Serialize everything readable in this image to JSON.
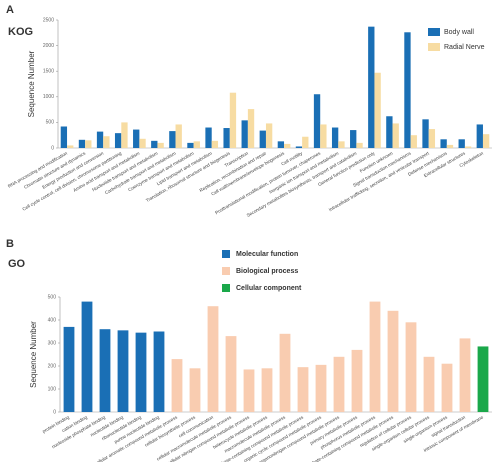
{
  "chart_data": [
    {
      "type": "grouped-bar",
      "label": "A",
      "title": "KOG",
      "ylabel": "Sequence Number",
      "categories": [
        "RNA processing and modification",
        "Chromatin structure and dynamics",
        "Energy production and conversion",
        "Cell cycle control, cell division, chromosome partitioning",
        "Amino acid transport and metabolism",
        "Nucleotide transport and metabolism",
        "Carbohydrate transport and metabolism",
        "Coenzyme transport and metabolism",
        "Lipid transport and metabolism",
        "Translation, ribosomal structure and biogenesis",
        "Transcription",
        "Replication, recombination and repair",
        "Cell wall/membrane/envelope biogenesis",
        "Cell motility",
        "Posttranslational modification, protein turnover, chaperones",
        "Inorganic ion transport and metabolism",
        "Secondary metabolites biosynthesis, transport and catabolism",
        "General function prediction only",
        "Function unknown",
        "Signal transduction mechanisms",
        "Intracellular trafficking, secretion, and vesicular transport",
        "Defense mechanisms",
        "Extracellular structures",
        "Cytoskeleton"
      ],
      "series": [
        {
          "name": "Body wall",
          "color": "#1a6fb5",
          "values": [
            420,
            160,
            320,
            290,
            360,
            140,
            330,
            100,
            400,
            390,
            540,
            340,
            130,
            30,
            1050,
            400,
            350,
            2370,
            620,
            2260,
            560,
            170,
            170,
            460
          ]
        },
        {
          "name": "Radial Nerve",
          "color": "#f7dca2",
          "values": [
            50,
            150,
            230,
            500,
            180,
            100,
            460,
            130,
            140,
            1080,
            760,
            480,
            80,
            220,
            460,
            130,
            100,
            1470,
            480,
            250,
            370,
            60,
            30,
            270
          ]
        }
      ],
      "ylim": [
        0,
        2500
      ],
      "yticks": [
        0,
        500,
        1000,
        1500,
        2000,
        2500
      ],
      "legend": "upper right"
    },
    {
      "type": "group-bar",
      "label": "B",
      "title": "GO",
      "ylabel": "Sequence Number",
      "series": [
        {
          "name": "Molecular function",
          "color": "#1a6fb5",
          "categories": [
            "protein binding",
            "cation binding",
            "nucleoside phosphate binding",
            "nucleotide binding",
            "ribonucleotide binding",
            "purine nucleotide binding"
          ],
          "values": [
            370,
            480,
            360,
            355,
            345,
            350
          ]
        },
        {
          "name": "Biological process",
          "color": "#f9ccb0",
          "categories": [
            "cellular aromatic compound metabolic process",
            "cellular biosynthetic process",
            "cell communication",
            "cellular macromolecule metabolic process",
            "cellular nitrogen compound metabolic process",
            "heterocycle metabolic process",
            "macromolecule metabolic process",
            "nucleobase-containing compound metabolic process",
            "organic cyclic compound metabolic process",
            "organonitrogen compound metabolic process",
            "primary metabolic process",
            "phosphorus metabolic process",
            "phosphate-containing compound metabolic process",
            "regulation of cellular process",
            "single-organism cellular process",
            "single-organism process",
            "signal transduction"
          ],
          "values": [
            230,
            190,
            460,
            330,
            185,
            190,
            340,
            195,
            205,
            240,
            270,
            480,
            440,
            390,
            240,
            210,
            320
          ]
        },
        {
          "name": "Cellular component",
          "color": "#1aa84a",
          "categories": [
            "intrinsic component of membrane"
          ],
          "values": [
            285
          ]
        }
      ],
      "ylim": [
        0,
        500
      ],
      "yticks": [
        0,
        100,
        200,
        300,
        400,
        500
      ],
      "legend": "upper center"
    }
  ]
}
